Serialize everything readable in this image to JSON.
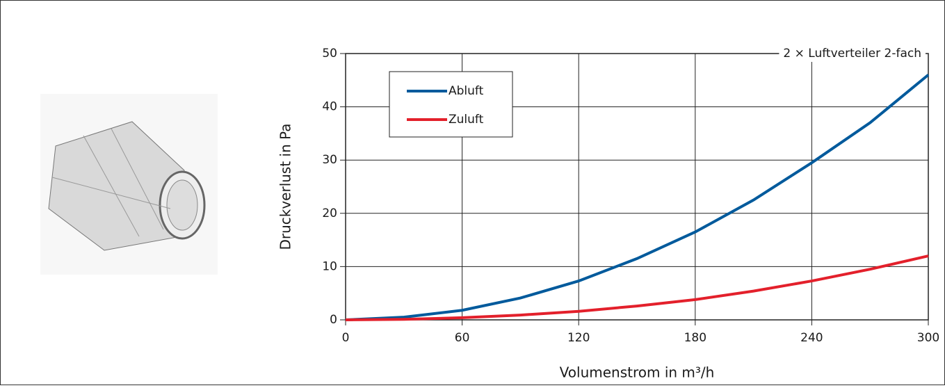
{
  "chart_data": {
    "type": "line",
    "annotation": "2 × Luftverteiler 2-fach",
    "x_label": "Volumenstrom in m³/h",
    "y_label": "Druckverlust in Pa",
    "x": [
      0,
      30,
      60,
      90,
      120,
      150,
      180,
      210,
      240,
      270,
      300
    ],
    "series": [
      {
        "name": "Abluft",
        "color": "#005a9c",
        "values": [
          0,
          0.5,
          1.8,
          4.1,
          7.3,
          11.5,
          16.5,
          22.5,
          29.5,
          37,
          46
        ]
      },
      {
        "name": "Zuluft",
        "color": "#e3202b",
        "values": [
          0,
          0.1,
          0.4,
          0.9,
          1.6,
          2.6,
          3.8,
          5.4,
          7.3,
          9.5,
          12
        ]
      }
    ],
    "xlim": [
      0,
      300
    ],
    "xticks": [
      0,
      60,
      120,
      180,
      240,
      300
    ],
    "ylim": [
      0,
      50
    ],
    "yticks": [
      0,
      10,
      20,
      30,
      40,
      50
    ],
    "grid": true,
    "legend": "upper-left"
  }
}
